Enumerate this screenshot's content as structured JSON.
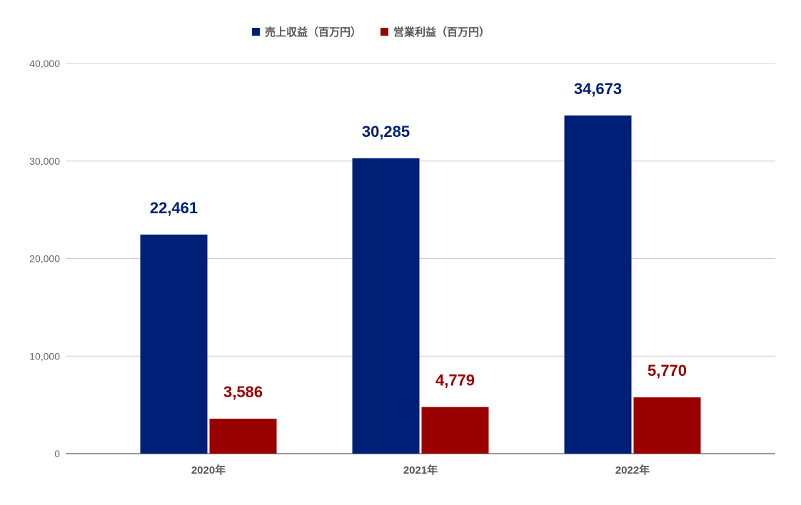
{
  "chart_data": {
    "type": "bar",
    "title": "",
    "xlabel": "",
    "ylabel": "",
    "categories": [
      "2020年",
      "2021年",
      "2022年"
    ],
    "series": [
      {
        "name": "売上収益（百万円）",
        "values": [
          22461,
          30285,
          34673
        ],
        "labels": [
          "22,461",
          "30,285",
          "34,673"
        ],
        "color": "#002078"
      },
      {
        "name": "営業利益（百万円）",
        "values": [
          3586,
          4779,
          5770
        ],
        "labels": [
          "3,586",
          "4,779",
          "5,770"
        ],
        "color": "#990000"
      }
    ],
    "ylim": [
      0,
      40000
    ],
    "yticks": [
      0,
      10000,
      20000,
      30000,
      40000
    ],
    "ytick_labels": [
      "0",
      "10,000",
      "20,000",
      "30,000",
      "40,000"
    ],
    "grid": true,
    "legend_position": "top-center",
    "colors": {
      "grid": "#cccccc",
      "axis": "#333333",
      "text": "#555555"
    }
  }
}
